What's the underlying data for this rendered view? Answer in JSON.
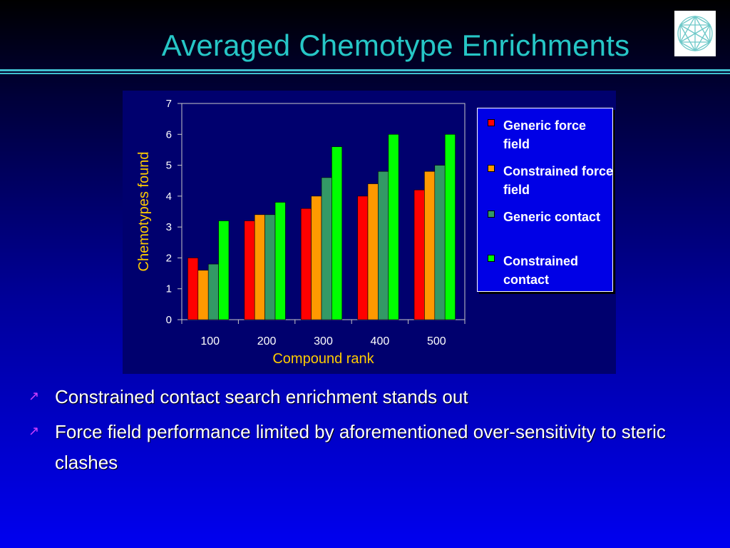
{
  "slide": {
    "title": "Averaged Chemotype Enrichments",
    "bullets": [
      "Constrained contact search enrichment stands out",
      "Force field performance limited by aforementioned over-sensitivity to steric clashes"
    ],
    "bullet_glyph": "↗",
    "colors": {
      "title": "#26c6c6",
      "rule": "#40c0d0",
      "bullet": "#d040ff",
      "panel": "#00006e",
      "legend_bg": "#0000e6"
    }
  },
  "chart_data": {
    "type": "bar",
    "categories": [
      "100",
      "200",
      "300",
      "400",
      "500"
    ],
    "series": [
      {
        "name": "Generic force field",
        "color": "#ff0000",
        "values": [
          2.0,
          3.2,
          3.6,
          4.0,
          4.2
        ]
      },
      {
        "name": "Constrained force field",
        "color": "#ff9900",
        "values": [
          1.6,
          3.4,
          4.0,
          4.4,
          4.8
        ]
      },
      {
        "name": "Generic contact",
        "color": "#339966",
        "values": [
          1.8,
          3.4,
          4.6,
          4.8,
          5.0
        ]
      },
      {
        "name": "Constrained contact",
        "color": "#00ff00",
        "values": [
          3.2,
          3.8,
          5.6,
          6.0,
          6.0
        ]
      }
    ],
    "xlabel": "Compound rank",
    "ylabel": "Chemotypes found",
    "ylim": [
      0,
      7
    ],
    "yticks": [
      "0",
      "1",
      "2",
      "3",
      "4",
      "5",
      "6",
      "7"
    ],
    "grid": false,
    "legend": "right"
  }
}
